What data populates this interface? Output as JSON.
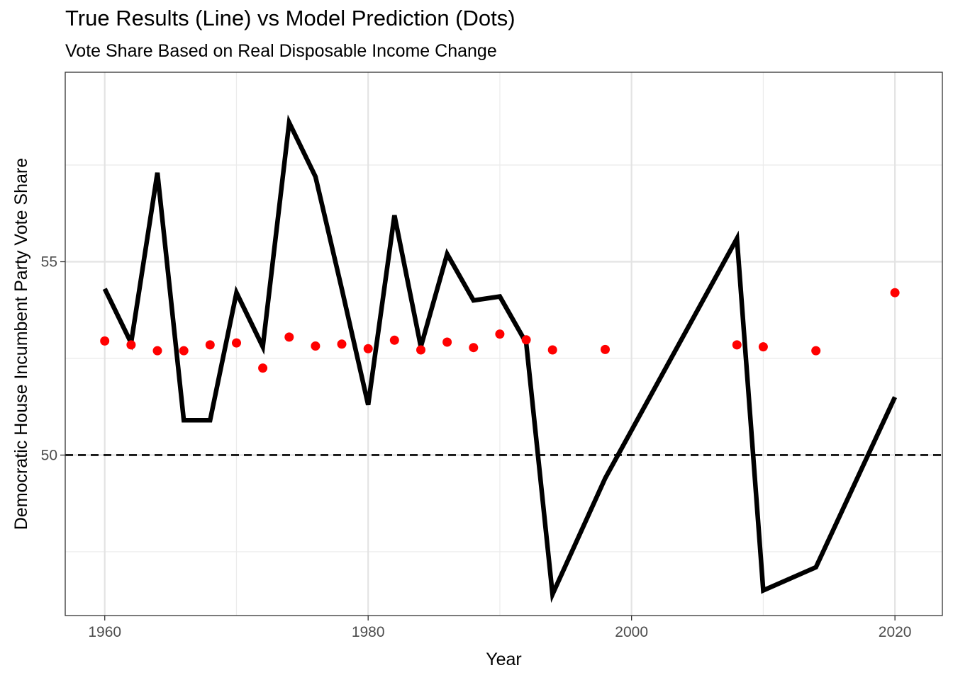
{
  "chart_data": {
    "type": "line",
    "title": "True Results (Line) vs Model Prediction (Dots)",
    "subtitle": "Vote Share Based on Real Disposable Income Change",
    "xlabel": "Year",
    "ylabel": "Democratic House Incumbent Party Vote Share",
    "xlim": [
      1957,
      2023.6
    ],
    "ylim": [
      45.85,
      59.9
    ],
    "x_ticks": [
      1960,
      1980,
      2000,
      2020
    ],
    "y_ticks": [
      50,
      55
    ],
    "x_tick_labels": [
      "1960",
      "1980",
      "2000",
      "2020"
    ],
    "y_tick_labels": [
      "50",
      "55"
    ],
    "x_minor_gridlines": [
      1970,
      1990,
      2010
    ],
    "y_minor_gridlines": [
      47.5,
      52.5,
      57.5
    ],
    "grid": true,
    "reference_line": {
      "y": 50,
      "style": "dashed",
      "color": "#000000"
    },
    "series": [
      {
        "type": "line",
        "color": "#000000",
        "x": [
          1960,
          1962,
          1964,
          1966,
          1968,
          1970,
          1972,
          1974,
          1976,
          1978,
          1980,
          1982,
          1984,
          1986,
          1988,
          1990,
          1992,
          1994,
          1998,
          2008,
          2010,
          2014,
          2020
        ],
        "y": [
          54.3,
          52.9,
          57.3,
          50.9,
          50.9,
          54.2,
          52.8,
          58.6,
          57.2,
          54.3,
          51.3,
          56.2,
          52.8,
          55.2,
          54.0,
          54.1,
          52.9,
          46.4,
          49.4,
          55.6,
          46.5,
          47.1,
          51.5
        ]
      },
      {
        "type": "scatter",
        "color": "#ff0000",
        "x": [
          1960,
          1962,
          1964,
          1966,
          1968,
          1970,
          1972,
          1974,
          1976,
          1978,
          1980,
          1982,
          1984,
          1986,
          1988,
          1990,
          1992,
          1994,
          1998,
          2008,
          2010,
          2014,
          2020
        ],
        "y": [
          52.95,
          52.85,
          52.7,
          52.7,
          52.85,
          52.9,
          52.25,
          53.05,
          52.82,
          52.87,
          52.75,
          52.97,
          52.72,
          52.92,
          52.78,
          53.13,
          52.98,
          52.72,
          52.73,
          52.85,
          52.8,
          52.7,
          54.2
        ]
      }
    ]
  }
}
